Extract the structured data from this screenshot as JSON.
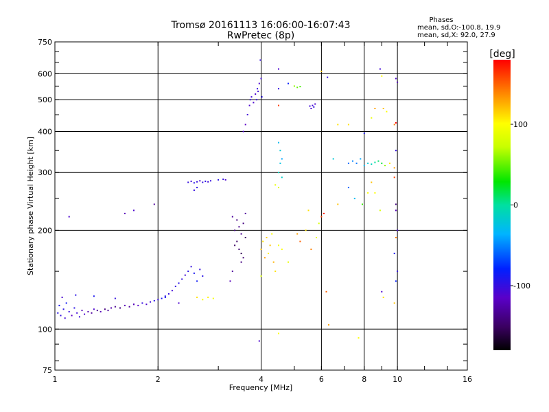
{
  "chart_data": {
    "type": "scatter",
    "title": "Tromsø 20161113 16:06:00-16:07:43",
    "subtitle": "RwPretec (8p)",
    "xlabel": "Frequency [MHz]",
    "ylabel": "Stationary phase Virtual Height [km]",
    "x_scale": "log",
    "y_scale": "log",
    "xlim": [
      1,
      16
    ],
    "ylim": [
      75,
      750
    ],
    "x_ticks": [
      "1",
      "2",
      "4",
      "6",
      "8",
      "10",
      "16"
    ],
    "x_tick_values": [
      1,
      2,
      4,
      6,
      8,
      10,
      16
    ],
    "y_ticks": [
      "750",
      "600",
      "500",
      "400",
      "300",
      "200",
      "100",
      "75"
    ],
    "y_tick_values": [
      750,
      600,
      500,
      400,
      300,
      200,
      100,
      75
    ],
    "grid": true,
    "stats": {
      "title": "Phases",
      "line1": "mean, sd,O:-100.8, 19.9",
      "line2": "mean, sd,X:  92.0, 27.9"
    },
    "colorbar": {
      "label": "[deg]",
      "min": -180,
      "max": 180,
      "ticks": [
        "100",
        "0",
        "-100"
      ],
      "tick_values": [
        100,
        0,
        -100
      ]
    },
    "series": [
      {
        "values": [
          [
            1.02,
            112,
            -95
          ],
          [
            1.03,
            118,
            -90
          ],
          [
            1.04,
            110,
            -100
          ],
          [
            1.05,
            125,
            -110
          ],
          [
            1.06,
            115,
            -95
          ],
          [
            1.07,
            108,
            -105
          ],
          [
            1.08,
            120,
            -85
          ],
          [
            1.1,
            113,
            -100
          ],
          [
            1.12,
            110,
            -115
          ],
          [
            1.14,
            116,
            -95
          ],
          [
            1.16,
            112,
            -105
          ],
          [
            1.18,
            109,
            -100
          ],
          [
            1.2,
            114,
            -120
          ],
          [
            1.22,
            111,
            -110
          ],
          [
            1.25,
            113,
            -125
          ],
          [
            1.28,
            112,
            -130
          ],
          [
            1.3,
            115,
            -110
          ],
          [
            1.33,
            114,
            -135
          ],
          [
            1.36,
            113,
            -120
          ],
          [
            1.4,
            115,
            -140
          ],
          [
            1.43,
            114,
            -130
          ],
          [
            1.46,
            116,
            -125
          ],
          [
            1.5,
            117,
            -135
          ],
          [
            1.55,
            116,
            -140
          ],
          [
            1.6,
            118,
            -120
          ],
          [
            1.65,
            117,
            -130
          ],
          [
            1.7,
            119,
            -110
          ],
          [
            1.75,
            118,
            -115
          ],
          [
            1.8,
            120,
            -100
          ],
          [
            1.85,
            119,
            -110
          ],
          [
            1.9,
            121,
            -105
          ],
          [
            1.95,
            122,
            -95
          ],
          [
            2.0,
            123,
            -100
          ],
          [
            2.05,
            124,
            -90
          ],
          [
            2.1,
            126,
            -95
          ],
          [
            2.15,
            128,
            -100
          ],
          [
            2.2,
            131,
            -105
          ],
          [
            2.25,
            135,
            -100
          ],
          [
            2.3,
            138,
            -95
          ],
          [
            2.35,
            142,
            -100
          ],
          [
            2.4,
            146,
            -105
          ],
          [
            2.45,
            150,
            -95
          ],
          [
            2.5,
            155,
            -100
          ],
          [
            2.55,
            148,
            -90
          ],
          [
            2.6,
            140,
            -85
          ],
          [
            2.65,
            152,
            -100
          ],
          [
            2.7,
            145,
            -95
          ],
          [
            1.15,
            127,
            -95
          ],
          [
            1.3,
            126,
            -90
          ],
          [
            1.5,
            124,
            -100
          ]
        ]
      },
      {
        "values": [
          [
            2.45,
            280,
            -100
          ],
          [
            2.5,
            282,
            -105
          ],
          [
            2.55,
            279,
            -95
          ],
          [
            2.6,
            281,
            -100
          ],
          [
            2.65,
            283,
            -110
          ],
          [
            2.7,
            280,
            -100
          ],
          [
            2.75,
            282,
            -95
          ],
          [
            2.8,
            281,
            -105
          ],
          [
            2.85,
            283,
            -100
          ],
          [
            3.0,
            285,
            -95
          ],
          [
            3.1,
            286,
            -100
          ],
          [
            3.15,
            285,
            -110
          ],
          [
            2.55,
            265,
            -100
          ],
          [
            2.6,
            270,
            -95
          ]
        ]
      },
      {
        "values": [
          [
            3.3,
            220,
            -130
          ],
          [
            3.35,
            200,
            -140
          ],
          [
            3.4,
            185,
            -150
          ],
          [
            3.45,
            175,
            -145
          ],
          [
            3.5,
            195,
            -135
          ],
          [
            3.55,
            210,
            -140
          ],
          [
            3.6,
            190,
            -150
          ],
          [
            3.5,
            170,
            -155
          ],
          [
            3.55,
            165,
            -145
          ],
          [
            3.45,
            205,
            -135
          ],
          [
            3.6,
            225,
            -130
          ],
          [
            3.4,
            215,
            -140
          ],
          [
            3.35,
            180,
            -150
          ],
          [
            3.5,
            160,
            -140
          ],
          [
            3.3,
            150,
            -130
          ],
          [
            3.25,
            140,
            -120
          ]
        ]
      },
      {
        "values": [
          [
            3.55,
            400,
            -110
          ],
          [
            3.6,
            420,
            -115
          ],
          [
            3.65,
            450,
            -105
          ],
          [
            3.7,
            480,
            -110
          ],
          [
            3.72,
            500,
            -100
          ],
          [
            3.75,
            510,
            -105
          ],
          [
            3.85,
            520,
            -110
          ],
          [
            3.9,
            540,
            -100
          ],
          [
            3.95,
            560,
            -110
          ],
          [
            4.0,
            580,
            -105
          ],
          [
            3.88,
            500,
            -100
          ],
          [
            3.92,
            530,
            -105
          ],
          [
            4.02,
            510,
            -95
          ],
          [
            3.8,
            490,
            -110
          ],
          [
            3.98,
            660,
            -100
          ],
          [
            3.95,
            92,
            -110
          ]
        ]
      },
      {
        "values": [
          [
            5.6,
            470,
            -110
          ],
          [
            5.65,
            480,
            -105
          ],
          [
            5.7,
            475,
            -100
          ],
          [
            5.75,
            485,
            -110
          ],
          [
            5.55,
            478,
            -105
          ],
          [
            6.25,
            585,
            -100
          ],
          [
            5.1,
            545,
            50
          ],
          [
            5.2,
            548,
            45
          ],
          [
            4.8,
            560,
            -80
          ],
          [
            5.0,
            550,
            60
          ]
        ]
      },
      {
        "values": [
          [
            4.0,
            175,
            120
          ],
          [
            4.05,
            185,
            110
          ],
          [
            4.1,
            165,
            130
          ],
          [
            4.15,
            190,
            115
          ],
          [
            4.2,
            170,
            105
          ],
          [
            4.25,
            180,
            120
          ],
          [
            4.3,
            195,
            100
          ],
          [
            4.35,
            160,
            125
          ],
          [
            4.4,
            150,
            110
          ],
          [
            4.5,
            180,
            95
          ],
          [
            4.6,
            175,
            100
          ],
          [
            4.5,
            270,
            85
          ],
          [
            4.4,
            275,
            90
          ],
          [
            4.0,
            145,
            80
          ],
          [
            2.6,
            125,
            110
          ],
          [
            2.7,
            123,
            100
          ],
          [
            2.8,
            125,
            105
          ],
          [
            2.9,
            124,
            95
          ]
        ]
      },
      {
        "values": [
          [
            4.5,
            370,
            -30
          ],
          [
            4.55,
            350,
            -20
          ],
          [
            4.6,
            330,
            -40
          ],
          [
            4.5,
            300,
            -10
          ],
          [
            4.55,
            320,
            -25
          ],
          [
            4.6,
            290,
            -15
          ]
        ]
      },
      {
        "values": [
          [
            7.2,
            320,
            -60
          ],
          [
            7.4,
            325,
            -50
          ],
          [
            7.6,
            320,
            -55
          ],
          [
            7.8,
            330,
            -40
          ],
          [
            8.0,
            315,
            -30
          ],
          [
            8.2,
            320,
            -20
          ],
          [
            8.4,
            318,
            -10
          ],
          [
            8.6,
            322,
            0
          ],
          [
            8.8,
            325,
            10
          ],
          [
            9.0,
            320,
            20
          ],
          [
            9.2,
            315,
            60
          ],
          [
            9.5,
            320,
            110
          ],
          [
            9.8,
            310,
            130
          ]
        ]
      },
      {
        "values": [
          [
            8.9,
            620,
            -105
          ],
          [
            9.0,
            590,
            100
          ],
          [
            9.9,
            580,
            -110
          ],
          [
            10.0,
            565,
            -120
          ],
          [
            9.1,
            470,
            120
          ],
          [
            9.3,
            460,
            100
          ],
          [
            9.8,
            420,
            140
          ],
          [
            9.9,
            425,
            180
          ],
          [
            8.6,
            470,
            130
          ],
          [
            8.4,
            440,
            90
          ],
          [
            8.0,
            395,
            -90
          ],
          [
            7.2,
            420,
            110
          ],
          [
            9.9,
            350,
            -100
          ],
          [
            6.5,
            330,
            -20
          ],
          [
            7.2,
            270,
            -60
          ],
          [
            7.5,
            250,
            -30
          ],
          [
            7.9,
            240,
            40
          ],
          [
            8.4,
            280,
            120
          ],
          [
            8.6,
            260,
            100
          ],
          [
            8.9,
            230,
            80
          ],
          [
            9.8,
            290,
            160
          ],
          [
            9.9,
            240,
            -140
          ],
          [
            9.9,
            230,
            -120
          ],
          [
            10.0,
            200,
            -110
          ],
          [
            9.9,
            190,
            140
          ],
          [
            9.8,
            170,
            -90
          ],
          [
            10.0,
            150,
            -100
          ],
          [
            9.9,
            140,
            -80
          ],
          [
            9.0,
            130,
            -110
          ],
          [
            9.1,
            125,
            110
          ],
          [
            9.8,
            120,
            120
          ],
          [
            6.2,
            130,
            150
          ],
          [
            6.3,
            103,
            130
          ],
          [
            7.7,
            94,
            100
          ],
          [
            5.8,
            190,
            90
          ],
          [
            5.9,
            210,
            80
          ],
          [
            6.0,
            220,
            160
          ],
          [
            5.5,
            230,
            110
          ],
          [
            6.1,
            225,
            170
          ],
          [
            6.7,
            240,
            120
          ],
          [
            5.1,
            195,
            130
          ],
          [
            5.2,
            185,
            150
          ],
          [
            5.4,
            200,
            110
          ],
          [
            5.6,
            175,
            140
          ],
          [
            6.7,
            420,
            110
          ],
          [
            8.2,
            260,
            100
          ],
          [
            4.5,
            620,
            -110
          ],
          [
            4.5,
            540,
            -100
          ],
          [
            4.5,
            480,
            160
          ],
          [
            6.0,
            610,
            120
          ],
          [
            4.8,
            160,
            90
          ],
          [
            4.5,
            97,
            100
          ]
        ]
      },
      {
        "values": [
          [
            1.1,
            220,
            -110
          ],
          [
            1.6,
            225,
            -120
          ],
          [
            1.7,
            230,
            -110
          ],
          [
            1.95,
            240,
            -130
          ],
          [
            1.7,
            119,
            -120
          ],
          [
            2.3,
            120,
            -110
          ],
          [
            2.1,
            125,
            -90
          ]
        ]
      }
    ]
  }
}
